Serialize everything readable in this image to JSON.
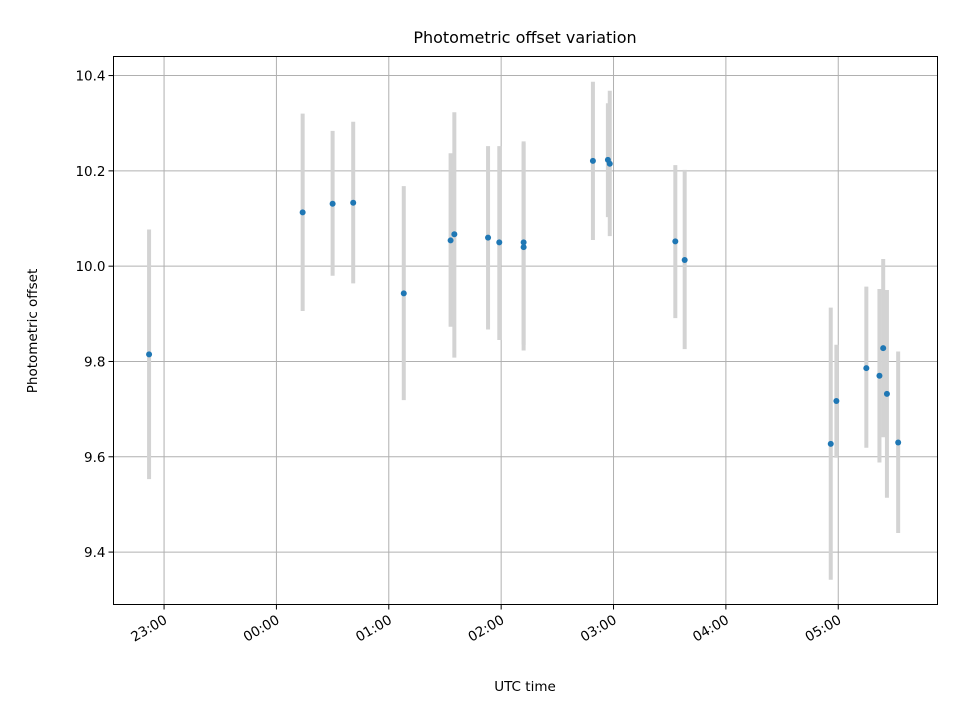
{
  "chart_data": {
    "type": "scatter",
    "title": "Photometric offset variation",
    "xlabel": "UTC time",
    "ylabel": "Photometric offset",
    "x_axis": "time",
    "xlim": [
      "22:33",
      "05:53"
    ],
    "ylim": [
      9.29,
      10.44
    ],
    "xticks": [
      "23:00",
      "00:00",
      "01:00",
      "02:00",
      "03:00",
      "04:00",
      "05:00"
    ],
    "yticks": [
      "9.4",
      "9.6",
      "9.8",
      "10.0",
      "10.2",
      "10.4"
    ],
    "grid": true,
    "marker_color": "#1f77b4",
    "errorbar_color": "#d3d3d3",
    "series": [
      {
        "points": [
          {
            "x": "22:52",
            "y": 9.815,
            "ylow": 9.553,
            "yhigh": 10.077
          },
          {
            "x": "00:14",
            "y": 10.113,
            "ylow": 9.906,
            "yhigh": 10.32
          },
          {
            "x": "00:30",
            "y": 10.131,
            "ylow": 9.98,
            "yhigh": 10.284
          },
          {
            "x": "00:41",
            "y": 10.133,
            "ylow": 9.964,
            "yhigh": 10.303
          },
          {
            "x": "01:08",
            "y": 9.943,
            "ylow": 9.719,
            "yhigh": 10.168
          },
          {
            "x": "01:33",
            "y": 10.054,
            "ylow": 9.873,
            "yhigh": 10.237
          },
          {
            "x": "01:35",
            "y": 10.067,
            "ylow": 9.808,
            "yhigh": 10.323
          },
          {
            "x": "01:53",
            "y": 10.06,
            "ylow": 9.867,
            "yhigh": 10.252
          },
          {
            "x": "01:59",
            "y": 10.05,
            "ylow": 9.845,
            "yhigh": 10.252
          },
          {
            "x": "02:12",
            "y": 10.05,
            "ylow": 9.835,
            "yhigh": 10.262
          },
          {
            "x": "02:12",
            "y": 10.04,
            "ylow": 9.823,
            "yhigh": 10.258
          },
          {
            "x": "02:49",
            "y": 10.221,
            "ylow": 10.055,
            "yhigh": 10.387
          },
          {
            "x": "02:57",
            "y": 10.223,
            "ylow": 10.103,
            "yhigh": 10.342
          },
          {
            "x": "02:58",
            "y": 10.215,
            "ylow": 10.063,
            "yhigh": 10.368
          },
          {
            "x": "03:33",
            "y": 10.052,
            "ylow": 9.891,
            "yhigh": 10.212
          },
          {
            "x": "03:38",
            "y": 10.013,
            "ylow": 9.826,
            "yhigh": 10.202
          },
          {
            "x": "04:56",
            "y": 9.627,
            "ylow": 9.342,
            "yhigh": 9.913
          },
          {
            "x": "04:59",
            "y": 9.717,
            "ylow": 9.598,
            "yhigh": 9.835
          },
          {
            "x": "05:15",
            "y": 9.786,
            "ylow": 9.619,
            "yhigh": 9.957
          },
          {
            "x": "05:22",
            "y": 9.77,
            "ylow": 9.588,
            "yhigh": 9.952
          },
          {
            "x": "05:24",
            "y": 9.828,
            "ylow": 9.641,
            "yhigh": 10.015
          },
          {
            "x": "05:26",
            "y": 9.732,
            "ylow": 9.514,
            "yhigh": 9.95
          },
          {
            "x": "05:32",
            "y": 9.63,
            "ylow": 9.44,
            "yhigh": 9.821
          }
        ]
      }
    ]
  }
}
